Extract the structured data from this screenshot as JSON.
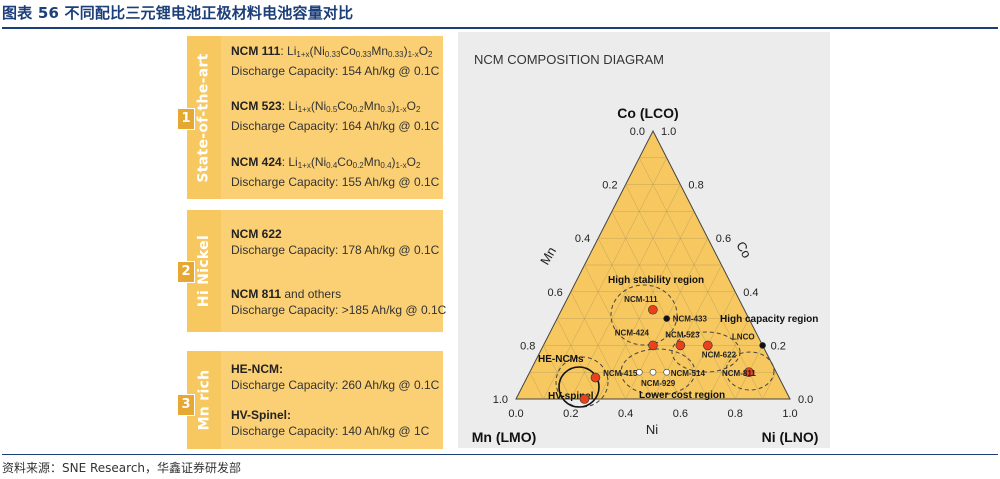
{
  "title": "图表 56 不同配比三元锂电池正极材料电池容量对比",
  "source": "资料来源：SNE Research，华鑫证券研发部",
  "colors": {
    "accent": "#1c3f7a",
    "panel": "#fbd075",
    "band": "#f6c85f",
    "triangle": "#f6c85f",
    "point": "#e8411c"
  },
  "groups": [
    {
      "number": "1",
      "label": "State-of-the-art",
      "entries": [
        {
          "name": "NCM 111",
          "formula_parts": [
            "Li",
            "1+x",
            "(Ni",
            "0.33",
            "Co",
            "0.33",
            "Mn",
            "0.33",
            ")",
            "1-x",
            "O",
            "2"
          ],
          "capacity": "Discharge Capacity: 154 Ah/kg @ 0.1C"
        },
        {
          "name": "NCM 523",
          "formula_parts": [
            "Li",
            "1+x",
            "(Ni",
            "0.5",
            "Co",
            "0.2",
            "Mn",
            "0.3",
            ")",
            "1-x",
            "O",
            "2"
          ],
          "capacity": "Discharge Capacity: 164 Ah/kg @ 0.1C"
        },
        {
          "name": "NCM 424",
          "formula_parts": [
            "Li",
            "1+x",
            "(Ni",
            "0.4",
            "Co",
            "0.2",
            "Mn",
            "0.4",
            ")",
            "1-x",
            "O",
            "2"
          ],
          "capacity": "Discharge Capacity: 155 Ah/kg @ 0.1C"
        }
      ]
    },
    {
      "number": "2",
      "label": "Hi Nickel",
      "entries": [
        {
          "name": "NCM 622",
          "suffix": "",
          "capacity": "Discharge Capacity: 178 Ah/kg @ 0.1C"
        },
        {
          "name": "NCM 811",
          "suffix": " and others",
          "capacity": "Discharge Capacity: >185 Ah/kg @ 0.1C"
        }
      ]
    },
    {
      "number": "3",
      "label": "Mn rich",
      "entries": [
        {
          "name": "HE-NCM:",
          "capacity": "Discharge Capacity: 260 Ah/kg @ 0.1C"
        },
        {
          "name": "HV-Spinel:",
          "capacity": "Discharge Capacity: 140 Ah/kg @ 1C"
        }
      ]
    }
  ],
  "diagram": {
    "heading": "NCM COMPOSITION DIAGRAM",
    "corners": {
      "top": "Co (LCO)",
      "left": "Mn (LMO)",
      "right": "Ni (LNO)"
    },
    "axis_names": {
      "left": "Mn",
      "right": "Co",
      "bottom": "Ni"
    },
    "bottom_ticks": [
      "0.0",
      "0.2",
      "0.4",
      "0.6",
      "0.8",
      "1.0"
    ],
    "left_ticks": [
      "1.0",
      "0.8",
      "0.6",
      "0.4",
      "0.2",
      "0.0"
    ],
    "right_ticks": [
      "1.0",
      "0.8",
      "0.6",
      "0.4",
      "0.2",
      "0.0"
    ],
    "regions": [
      {
        "label": "High stability region"
      },
      {
        "label": "High capacity region"
      },
      {
        "label": "Lower cost region"
      },
      {
        "label": "HE-NCMs"
      },
      {
        "label": "HV-spinel"
      }
    ],
    "points": [
      {
        "label": "NCM-111",
        "ni": 0.333,
        "co": 0.333,
        "color": "#e8411c"
      },
      {
        "label": "NCM-433",
        "ni": 0.4,
        "co": 0.3,
        "color": "#111111"
      },
      {
        "label": "NCM-424",
        "ni": 0.4,
        "co": 0.2,
        "color": "#e8411c"
      },
      {
        "label": "NCM-523",
        "ni": 0.5,
        "co": 0.2,
        "color": "#e8411c"
      },
      {
        "label": "NCM-622",
        "ni": 0.6,
        "co": 0.2,
        "color": "#e8411c"
      },
      {
        "label": "NCM-811",
        "ni": 0.8,
        "co": 0.1,
        "color": "#e8411c"
      },
      {
        "label": "LNCO",
        "ni": 0.8,
        "co": 0.2,
        "color": "#111111"
      },
      {
        "label": "NCM-514",
        "ni": 0.5,
        "co": 0.1,
        "color": "#ffffff"
      },
      {
        "label": "NCM-415",
        "ni": 0.4,
        "co": 0.1,
        "color": "#ffffff"
      },
      {
        "label": "NCM-929",
        "ni": 0.45,
        "co": 0.1,
        "color": "#ffffff"
      },
      {
        "label": "",
        "ni": 0.25,
        "co": 0.08,
        "color": "#e8411c"
      },
      {
        "label": "",
        "ni": 0.25,
        "co": 0.0,
        "color": "#e8411c"
      }
    ]
  }
}
